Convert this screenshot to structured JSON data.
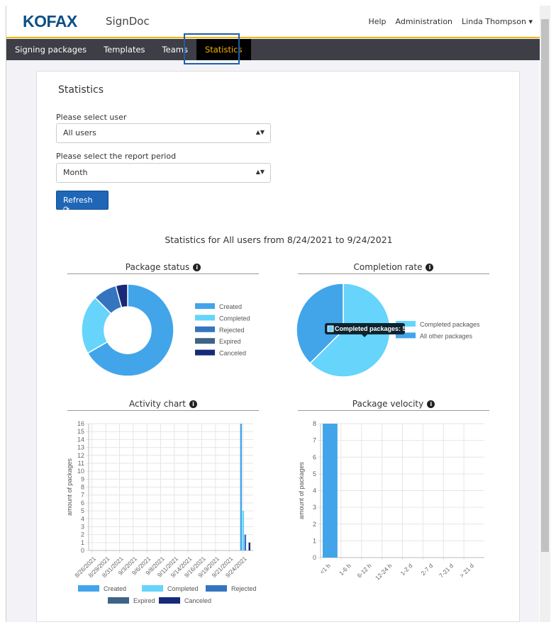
{
  "header": {
    "logo": "KOFAX",
    "app_name": "SignDoc",
    "links": [
      "Help",
      "Administration"
    ],
    "user": "Linda Thompson"
  },
  "nav": {
    "items": [
      "Signing packages",
      "Templates",
      "Teams",
      "Statistics"
    ],
    "active": "Statistics"
  },
  "page": {
    "title": "Statistics",
    "user_label": "Please select user",
    "user_value": "All users",
    "period_label": "Please select the report period",
    "period_value": "Month",
    "refresh_label": "Refresh",
    "subtitle": "Statistics for All users from 8/24/2021 to 9/24/2021"
  },
  "colors": {
    "created": "#42a5ea",
    "completed": "#66d4fb",
    "rejected": "#3575c0",
    "expired": "#3d6385",
    "canceled": "#162a78",
    "accent": "#f5b400",
    "brand": "#0a4f86"
  },
  "chart_data": [
    {
      "type": "pie",
      "title": "Package status",
      "donut": true,
      "labels": [
        "Created",
        "Completed",
        "Rejected",
        "Expired",
        "Canceled"
      ],
      "values": [
        16,
        5,
        2,
        0,
        1
      ],
      "legend": "right"
    },
    {
      "type": "pie",
      "title": "Completion rate",
      "labels": [
        "Completed packages",
        "All other packages"
      ],
      "values": [
        5,
        3
      ],
      "legend": "right",
      "tooltip": "Completed packages: 5"
    },
    {
      "type": "bar",
      "title": "Activity chart",
      "ylabel": "amount of packages",
      "ylim": [
        0,
        16
      ],
      "categories": [
        "8/26/2021",
        "8/29/2021",
        "8/31/2021",
        "9/3/2021",
        "9/6/2021",
        "9/8/2021",
        "9/11/2021",
        "9/14/2021",
        "9/16/2021",
        "9/19/2021",
        "9/21/2021",
        "9/24/2021"
      ],
      "series": [
        {
          "name": "Created",
          "values": [
            0,
            0,
            0,
            0,
            0,
            0,
            0,
            0,
            0,
            0,
            0,
            16
          ]
        },
        {
          "name": "Completed",
          "values": [
            0,
            0,
            0,
            0,
            0,
            0,
            0,
            0,
            0,
            0,
            0,
            5
          ]
        },
        {
          "name": "Rejected",
          "values": [
            0,
            0,
            0,
            0,
            0,
            0,
            0,
            0,
            0,
            0,
            0,
            2
          ]
        },
        {
          "name": "Expired",
          "values": [
            0,
            0,
            0,
            0,
            0,
            0,
            0,
            0,
            0,
            0,
            0,
            0
          ]
        },
        {
          "name": "Canceled",
          "values": [
            0,
            0,
            0,
            0,
            0,
            0,
            0,
            0,
            0,
            0,
            0,
            1
          ]
        }
      ],
      "legend": "bottom",
      "grid": true
    },
    {
      "type": "bar",
      "title": "Package velocity",
      "ylabel": "amount of packages",
      "ylim": [
        0,
        8
      ],
      "categories": [
        "<1 h",
        "1-6 h",
        "6-12 h",
        "12-24 h",
        "1-2 d",
        "2-7 d",
        "7-21 d",
        "> 21 d"
      ],
      "values": [
        8,
        0,
        0,
        0,
        0,
        0,
        0,
        0
      ],
      "grid": true
    }
  ]
}
